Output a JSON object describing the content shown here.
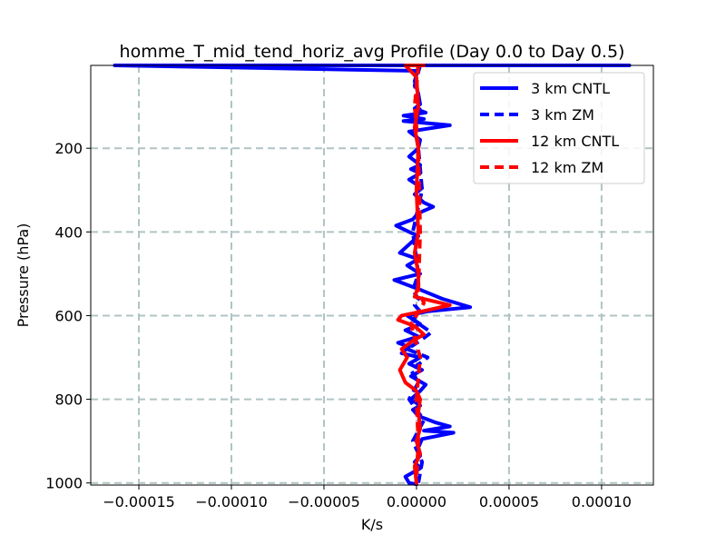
{
  "chart_data": {
    "type": "line",
    "title": "homme_T_mid_tend_horiz_avg Profile (Day 0.0 to Day 0.5)",
    "xlabel": "K/s",
    "ylabel": "Pressure (hPa)",
    "xlim": [
      -0.000176,
      0.000128
    ],
    "ylim": [
      1005,
      2
    ],
    "y_inverted": true,
    "grid": true,
    "legend_position": "top-right",
    "x_ticks": [
      -0.00015,
      -0.0001,
      -5e-05,
      0.0,
      5e-05,
      0.0001
    ],
    "x_tick_labels": [
      "−0.00015",
      "−0.00010",
      "−0.00005",
      "0.00000",
      "0.00005",
      "0.00010"
    ],
    "y_ticks": [
      200,
      400,
      600,
      800,
      1000
    ],
    "y_tick_labels": [
      "200",
      "400",
      "600",
      "800",
      "1000"
    ],
    "series": [
      {
        "name": "3 km CNTL",
        "color": "#0000ff",
        "style": "solid",
        "x": [
          0.000115,
          -0.000163,
          5e-07,
          -1e-06,
          1e-06,
          2e-06,
          -1e-06,
          5e-06,
          -7e-06,
          4e-06,
          -7e-06,
          1.8e-05,
          -4e-06,
          2e-06,
          1e-06,
          -4e-06,
          2e-06,
          -3e-06,
          2e-06,
          -4e-06,
          3e-06,
          -1e-06,
          4e-06,
          9e-06,
          1e-06,
          -2e-06,
          -1.1e-05,
          -4e-06,
          1e-06,
          -4e-06,
          -9e-06,
          1e-06,
          -5e-06,
          2e-06,
          -1.2e-05,
          3e-06,
          1.4e-05,
          2.9e-05,
          6e-06,
          -5e-06,
          2e-06,
          -6e-06,
          1e-06,
          -1e-05,
          -4e-06,
          -8e-06,
          2e-06,
          -4e-06,
          3e-06,
          -3e-06,
          5e-06,
          2e-06,
          -3e-06,
          2e-06,
          -2e-06,
          1e-06,
          1e-05,
          1.8e-05,
          4e-06,
          2e-05,
          3e-06,
          1e-06,
          2e-06,
          -1e-06,
          2e-06,
          -6e-06,
          -4e-06,
          0.0
        ],
        "p": [
          2,
          2,
          15,
          40,
          70,
          95,
          105,
          115,
          122,
          130,
          135,
          145,
          160,
          180,
          200,
          220,
          240,
          250,
          260,
          275,
          295,
          310,
          330,
          340,
          355,
          370,
          385,
          400,
          410,
          430,
          450,
          465,
          480,
          500,
          515,
          540,
          560,
          580,
          590,
          600,
          620,
          635,
          650,
          665,
          675,
          690,
          700,
          715,
          730,
          745,
          765,
          780,
          800,
          815,
          825,
          840,
          855,
          865,
          875,
          880,
          895,
          915,
          935,
          950,
          965,
          985,
          1000,
          1003
        ]
      },
      {
        "name": "3 km ZM",
        "color": "#0000ff",
        "style": "dashed",
        "x": [
          2e-06,
          -1e-06,
          2e-06,
          -1e-06,
          1e-06,
          3e-06,
          -2e-06,
          1e-06,
          -2e-06,
          1e-06,
          -1e-06,
          2e-06,
          -2e-06,
          8e-06,
          2e-06,
          -5e-06,
          6e-06,
          -3e-06,
          1e-06,
          -4e-06,
          4e-06,
          -2e-06,
          3e-06,
          1e-06
        ],
        "p": [
          2,
          50,
          100,
          150,
          200,
          300,
          400,
          500,
          540,
          560,
          575,
          590,
          610,
          640,
          660,
          680,
          700,
          730,
          760,
          800,
          850,
          900,
          950,
          1000
        ]
      },
      {
        "name": "12 km CNTL",
        "color": "#ff0000",
        "style": "solid",
        "x": [
          4e-06,
          -6e-06,
          0.0,
          1e-06,
          -1e-06,
          1e-06,
          0.0,
          1e-06,
          -1e-06,
          1e-06,
          1e-06,
          -1e-06,
          1.8e-05,
          3e-06,
          -8e-06,
          -1e-05,
          -1e-06,
          4e-06,
          -2e-06,
          -8e-06,
          -5e-06,
          -9e-06,
          -6e-06,
          0.0,
          2e-06,
          1e-06,
          2e-06,
          0.0,
          2e-06,
          -1e-06,
          0.0
        ],
        "p": [
          2,
          2,
          30,
          100,
          150,
          200,
          300,
          400,
          450,
          500,
          530,
          555,
          575,
          590,
          600,
          610,
          625,
          645,
          660,
          680,
          700,
          730,
          760,
          780,
          800,
          830,
          870,
          900,
          930,
          960,
          1000
        ]
      },
      {
        "name": "12 km ZM",
        "color": "#ff0000",
        "style": "dashed",
        "x": [
          1e-06,
          -1e-06,
          1e-06,
          2e-06,
          1e-06,
          4e-06,
          0.0,
          -3e-06,
          2e-06,
          0.0,
          1e-06,
          0.0
        ],
        "p": [
          2,
          100,
          200,
          400,
          540,
          570,
          600,
          620,
          700,
          800,
          900,
          1000
        ]
      }
    ]
  }
}
